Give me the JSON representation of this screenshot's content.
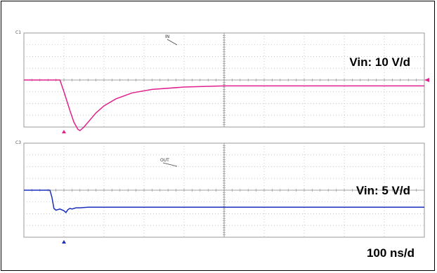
{
  "chart_data": [
    {
      "type": "line",
      "channel_tag": "C1",
      "probe_label": "IN",
      "scale_text": "Vin: 10 V/d",
      "color": "#e0208c",
      "units_per_div": 10,
      "series": [
        {
          "x": [
            0,
            90,
            100,
            115,
            125,
            135,
            140,
            150,
            165,
            180,
            200,
            230,
            270,
            320,
            400,
            500,
            600,
            700,
            800,
            900,
            1000
          ],
          "y": [
            0,
            0,
            -1.0,
            -2.6,
            -3.6,
            -4.2,
            -4.3,
            -4.0,
            -3.4,
            -2.8,
            -2.2,
            -1.6,
            -1.1,
            -0.8,
            -0.6,
            -0.5,
            -0.5,
            -0.5,
            -0.5,
            -0.5,
            -0.5
          ]
        }
      ],
      "ylim": [
        -4,
        4
      ]
    },
    {
      "type": "line",
      "channel_tag": "C3",
      "probe_label": "OUT",
      "scale_text": "Vin: 5 V/d",
      "color": "#1a2ebd",
      "units_per_div": 5,
      "series": [
        {
          "x": [
            0,
            65,
            70,
            75,
            80,
            90,
            100,
            105,
            110,
            115,
            120,
            130,
            140,
            160,
            200,
            300,
            400,
            500,
            600,
            700,
            800,
            900,
            1000
          ],
          "y": [
            0,
            0,
            -0.6,
            -1.55,
            -1.7,
            -1.6,
            -1.75,
            -1.9,
            -1.65,
            -1.55,
            -1.6,
            -1.5,
            -1.5,
            -1.45,
            -1.45,
            -1.45,
            -1.45,
            -1.45,
            -1.45,
            -1.45,
            -1.45,
            -1.45,
            -1.45
          ]
        }
      ],
      "ylim": [
        -4,
        4
      ]
    }
  ],
  "timebase_text": "100 ns/d",
  "xlim": [
    0,
    1000
  ],
  "x_divisions": 10,
  "y_divisions": 8,
  "trigger_marker_x": 100,
  "colors": {
    "grid": "#c8c8c8",
    "axis": "#8a8a8a",
    "border": "#000000"
  }
}
